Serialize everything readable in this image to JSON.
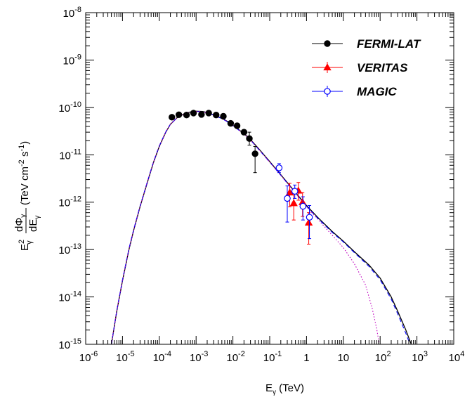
{
  "chart_data": {
    "type": "scatter",
    "x_scale": "log",
    "y_scale": "log",
    "xlim": [
      1e-06,
      10000.0
    ],
    "ylim": [
      1e-15,
      1e-08
    ],
    "grid": false,
    "legend_position": "top-right",
    "xlabel": {
      "base": "E",
      "sub": "γ",
      "unit": " (TeV)"
    },
    "ylabel": {
      "prefix": "E",
      "prefix_sup": "2",
      "prefix_sub": "γ",
      "frac_num": "dΦ",
      "frac_num_sub": "γ",
      "frac_den": "dE",
      "frac_den_sub": "γ",
      "units": "(TeV cm",
      "units_sup1": "-2",
      "units_mid": " s",
      "units_sup2": "-1",
      "units_end": ")"
    },
    "x_ticks": [
      {
        "value": 1e-06,
        "mant": "10",
        "exp": "-6"
      },
      {
        "value": 1e-05,
        "mant": "10",
        "exp": "-5"
      },
      {
        "value": 0.0001,
        "mant": "10",
        "exp": "-4"
      },
      {
        "value": 0.001,
        "mant": "10",
        "exp": "-3"
      },
      {
        "value": 0.01,
        "mant": "10",
        "exp": "-2"
      },
      {
        "value": 0.1,
        "mant": "10",
        "exp": "-1"
      },
      {
        "value": 1,
        "mant": "1",
        "exp": ""
      },
      {
        "value": 10,
        "mant": "10",
        "exp": ""
      },
      {
        "value": 100,
        "mant": "10",
        "exp": "2"
      },
      {
        "value": 1000,
        "mant": "10",
        "exp": "3"
      },
      {
        "value": 10000,
        "mant": "10",
        "exp": "4"
      }
    ],
    "y_ticks": [
      {
        "value": 1e-15,
        "mant": "10",
        "exp": "-15"
      },
      {
        "value": 1e-14,
        "mant": "10",
        "exp": "-14"
      },
      {
        "value": 1e-13,
        "mant": "10",
        "exp": "-13"
      },
      {
        "value": 1e-12,
        "mant": "10",
        "exp": "-12"
      },
      {
        "value": 1e-11,
        "mant": "10",
        "exp": "-11"
      },
      {
        "value": 1e-10,
        "mant": "10",
        "exp": "-10"
      },
      {
        "value": 1e-09,
        "mant": "10",
        "exp": "-9"
      },
      {
        "value": 1e-08,
        "mant": "10",
        "exp": "-8"
      }
    ],
    "series": [
      {
        "name": "FERMI-LAT",
        "marker": "filled-circle",
        "color": "#000000",
        "points": [
          {
            "x": 0.00022,
            "y": 6.2e-11
          },
          {
            "x": 0.00034,
            "y": 7e-11
          },
          {
            "x": 0.00055,
            "y": 6.9e-11
          },
          {
            "x": 0.00085,
            "y": 7.6e-11
          },
          {
            "x": 0.0014,
            "y": 7.1e-11
          },
          {
            "x": 0.0022,
            "y": 7.6e-11
          },
          {
            "x": 0.0035,
            "y": 6.9e-11
          },
          {
            "x": 0.0055,
            "y": 6.5e-11
          },
          {
            "x": 0.0087,
            "y": 4.6e-11
          },
          {
            "x": 0.013,
            "y": 4.1e-11
          },
          {
            "x": 0.02,
            "y": 3e-11
          },
          {
            "x": 0.028,
            "y": 2.2e-11,
            "yerr_lo": 1.6e-11,
            "yerr_hi": 3e-11
          },
          {
            "x": 0.04,
            "y": 1.05e-11,
            "yerr_lo": 4.2e-12,
            "yerr_hi": 1.5e-11
          }
        ]
      },
      {
        "name": "VERITAS",
        "marker": "filled-triangle",
        "color": "#ff0000",
        "points": [
          {
            "x": 0.35,
            "y": 1.6e-12,
            "yerr_lo": 8e-13,
            "yerr_hi": 2.5e-12
          },
          {
            "x": 0.45,
            "y": 9.5e-13,
            "yerr_lo": 4.2e-13,
            "yerr_hi": 1.6e-12
          },
          {
            "x": 0.6,
            "y": 1.75e-12,
            "yerr_lo": 1.1e-12,
            "yerr_hi": 2.6e-12
          },
          {
            "x": 0.78,
            "y": 1e-12,
            "yerr_lo": 5e-13,
            "yerr_hi": 1.6e-12
          },
          {
            "x": 1.15,
            "y": 3.7e-13,
            "yerr_lo": 1.3e-13,
            "yerr_hi": 6e-13
          }
        ]
      },
      {
        "name": "MAGIC",
        "marker": "open-circle",
        "color": "#0000ff",
        "points": [
          {
            "x": 0.18,
            "y": 5.3e-12,
            "yerr_lo": 4.2e-12,
            "yerr_hi": 6.5e-12
          },
          {
            "x": 0.3,
            "y": 1.2e-12,
            "yerr_lo": 3.8e-13,
            "yerr_hi": 2.2e-12
          },
          {
            "x": 0.48,
            "y": 1.7e-12,
            "yerr_lo": 1.2e-12,
            "yerr_hi": 2.3e-12
          },
          {
            "x": 0.8,
            "y": 8.2e-13,
            "yerr_lo": 4.2e-13,
            "yerr_hi": 1.3e-12
          },
          {
            "x": 1.2,
            "y": 4.8e-13,
            "yerr_lo": 1.7e-13,
            "yerr_hi": 8.5e-13
          }
        ]
      }
    ],
    "model_curves": [
      {
        "color": "#000000",
        "style": "solid",
        "points": [
          [
            5e-06,
            1e-15
          ],
          [
            7e-06,
            5e-15
          ],
          [
            1e-05,
            2.2e-14
          ],
          [
            1.5e-05,
            1e-13
          ],
          [
            2e-05,
            2.5e-13
          ],
          [
            3e-05,
            8e-13
          ],
          [
            5e-05,
            3e-12
          ],
          [
            7e-05,
            7e-12
          ],
          [
            0.0001,
            1.5e-11
          ],
          [
            0.00015,
            3e-11
          ],
          [
            0.0002,
            4.4e-11
          ],
          [
            0.0003,
            6e-11
          ],
          [
            0.0005,
            7.5e-11
          ],
          [
            0.0008,
            8.2e-11
          ],
          [
            0.001,
            8.3e-11
          ],
          [
            0.0015,
            8.2e-11
          ],
          [
            0.002,
            7.8e-11
          ],
          [
            0.003,
            7e-11
          ],
          [
            0.005,
            5.9e-11
          ],
          [
            0.008,
            4.8e-11
          ],
          [
            0.01,
            4.2e-11
          ],
          [
            0.02,
            2.8e-11
          ],
          [
            0.03,
            2.1e-11
          ],
          [
            0.05,
            1.35e-11
          ],
          [
            0.1,
            7.2e-12
          ],
          [
            0.2,
            3.8e-12
          ],
          [
            0.5,
            1.6e-12
          ],
          [
            1,
            8.5e-13
          ],
          [
            2,
            4.8e-13
          ],
          [
            5,
            2.4e-13
          ],
          [
            10,
            1.5e-13
          ],
          [
            20,
            9e-14
          ],
          [
            50,
            4.7e-14
          ],
          [
            100,
            2.5e-14
          ],
          [
            200,
            1e-14
          ],
          [
            300,
            5e-15
          ],
          [
            500,
            2e-15
          ],
          [
            700,
            1e-15
          ]
        ]
      },
      {
        "color": "#0000ff",
        "style": "dashed",
        "points": [
          [
            5e-06,
            1e-15
          ],
          [
            7e-06,
            5.2e-15
          ],
          [
            1e-05,
            2.3e-14
          ],
          [
            1.5e-05,
            1.05e-13
          ],
          [
            2e-05,
            2.6e-13
          ],
          [
            3e-05,
            8.3e-13
          ],
          [
            5e-05,
            3.1e-12
          ],
          [
            7e-05,
            7.2e-12
          ],
          [
            0.0001,
            1.55e-11
          ],
          [
            0.00015,
            3.05e-11
          ],
          [
            0.0002,
            4.4e-11
          ],
          [
            0.0003,
            6e-11
          ],
          [
            0.0005,
            7.4e-11
          ],
          [
            0.0008,
            8.1e-11
          ],
          [
            0.001,
            8.2e-11
          ],
          [
            0.0015,
            8.1e-11
          ],
          [
            0.002,
            7.7e-11
          ],
          [
            0.003,
            6.9e-11
          ],
          [
            0.005,
            5.8e-11
          ],
          [
            0.008,
            4.7e-11
          ],
          [
            0.01,
            4.1e-11
          ],
          [
            0.02,
            2.75e-11
          ],
          [
            0.03,
            2.05e-11
          ],
          [
            0.05,
            1.3e-11
          ],
          [
            0.1,
            7e-12
          ],
          [
            0.2,
            3.7e-12
          ],
          [
            0.5,
            1.55e-12
          ],
          [
            1,
            8.2e-13
          ],
          [
            2,
            4.6e-13
          ],
          [
            5,
            2.3e-13
          ],
          [
            10,
            1.45e-13
          ],
          [
            20,
            8.6e-14
          ],
          [
            50,
            4.4e-14
          ],
          [
            100,
            2.3e-14
          ],
          [
            200,
            9e-15
          ],
          [
            300,
            4.4e-15
          ],
          [
            500,
            1.7e-15
          ],
          [
            650,
            1e-15
          ]
        ]
      },
      {
        "color": "#c000c0",
        "style": "dotted",
        "points": [
          [
            5e-06,
            1e-15
          ],
          [
            7e-06,
            5.1e-15
          ],
          [
            1e-05,
            2.25e-14
          ],
          [
            1.5e-05,
            1.02e-13
          ],
          [
            2e-05,
            2.55e-13
          ],
          [
            3e-05,
            8.1e-13
          ],
          [
            5e-05,
            3.05e-12
          ],
          [
            7e-05,
            7.1e-12
          ],
          [
            0.0001,
            1.52e-11
          ],
          [
            0.00015,
            3.02e-11
          ],
          [
            0.0002,
            4.4e-11
          ],
          [
            0.0003,
            6e-11
          ],
          [
            0.0005,
            7.45e-11
          ],
          [
            0.0008,
            8.15e-11
          ],
          [
            0.001,
            8.25e-11
          ],
          [
            0.0015,
            8.1e-11
          ],
          [
            0.002,
            7.7e-11
          ],
          [
            0.003,
            6.95e-11
          ],
          [
            0.005,
            5.85e-11
          ],
          [
            0.008,
            4.75e-11
          ],
          [
            0.01,
            4.15e-11
          ],
          [
            0.02,
            2.75e-11
          ],
          [
            0.03,
            2.05e-11
          ],
          [
            0.05,
            1.32e-11
          ],
          [
            0.1,
            7e-12
          ],
          [
            0.2,
            3.7e-12
          ],
          [
            0.5,
            1.55e-12
          ],
          [
            1,
            8e-13
          ],
          [
            2,
            4.4e-13
          ],
          [
            5,
            2e-13
          ],
          [
            10,
            1.1e-13
          ],
          [
            20,
            5e-14
          ],
          [
            40,
            1.8e-14
          ],
          [
            60,
            6e-15
          ],
          [
            80,
            2.2e-15
          ],
          [
            95,
            1e-15
          ]
        ]
      }
    ]
  }
}
